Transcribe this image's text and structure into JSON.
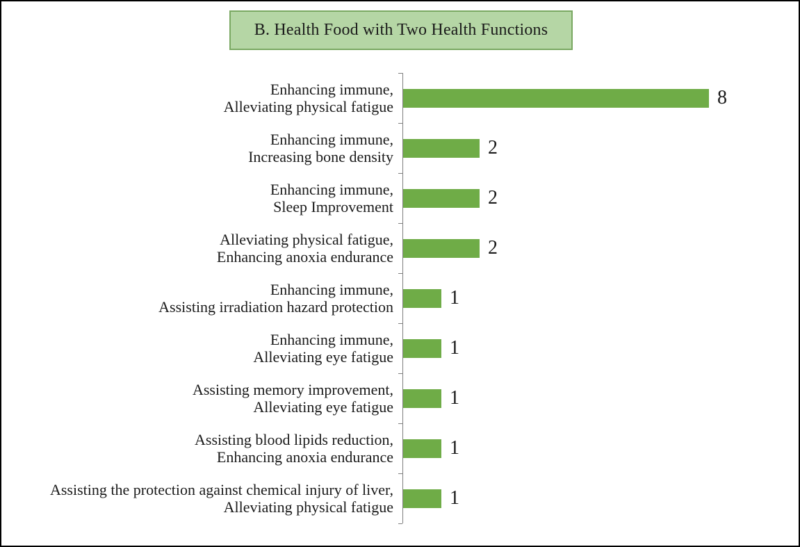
{
  "chart_data": {
    "type": "bar",
    "orientation": "horizontal",
    "title": "B. Health Food with Two Health Functions",
    "categories": [
      [
        "Enhancing immune,",
        "Alleviating physical fatigue"
      ],
      [
        "Enhancing immune,",
        "Increasing bone density"
      ],
      [
        "Enhancing immune,",
        "Sleep Improvement"
      ],
      [
        "Alleviating physical fatigue,",
        "Enhancing anoxia endurance"
      ],
      [
        "Enhancing immune,",
        "Assisting irradiation hazard protection"
      ],
      [
        "Enhancing immune,",
        "Alleviating eye fatigue"
      ],
      [
        "Assisting memory improvement,",
        "Alleviating eye fatigue"
      ],
      [
        "Assisting blood lipids reduction,",
        "Enhancing anoxia endurance"
      ],
      [
        "Assisting the protection against chemical injury of liver,",
        "Alleviating physical fatigue"
      ]
    ],
    "values": [
      8,
      2,
      2,
      2,
      1,
      1,
      1,
      1,
      1
    ],
    "data_labels": true,
    "xlim": [
      0,
      8
    ],
    "grid": false,
    "legend": false,
    "colors": {
      "bar": "#6fac47",
      "axis": "#7f7f7f",
      "title_fill": "#b5d6a5",
      "title_border": "#79a861",
      "text": "#1a1a1a",
      "frame_border": "#000000"
    }
  }
}
